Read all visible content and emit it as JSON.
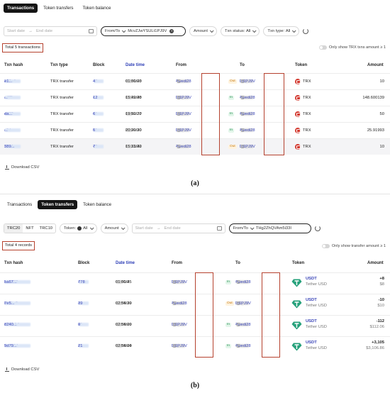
{
  "panel_a": {
    "tabs": [
      {
        "label": "Transactions",
        "active": true
      },
      {
        "label": "Token transfers",
        "active": false
      },
      {
        "label": "Token balance",
        "active": false
      }
    ],
    "filters": {
      "start_date_placeholder": "Start date",
      "end_date_placeholder": "End date",
      "from_to_label": "From/To",
      "from_to_value": "McvZJwYSULt1PJ9V",
      "amount_label": "Amount",
      "status_label": "Txn status:",
      "status_value": "All",
      "type_label": "Txn type:",
      "type_value": "All"
    },
    "total_text": "Total 5 transactions",
    "toggle_text": "Only show TRX txns amount ≥ 1",
    "columns": [
      "Txn hash",
      "Txn type",
      "Block",
      "Date time",
      "From",
      "",
      "To",
      "Token",
      "Amount"
    ],
    "rows": [
      {
        "hash_start": "2d3a4",
        "hash_end": "e1...",
        "type": "TRX transfer",
        "block_start": "43",
        "block_end": "4",
        "date_start": "08/30/20",
        "time": "01:01:03",
        "from_start": "TRz",
        "from_end": "4wedi28",
        "dir": "Out",
        "to_start": "THg",
        "to_end": "Lt1PJ9V",
        "token": "TRX",
        "amount": "10"
      },
      {
        "hash_start": "e47f",
        "hash_end": "...",
        "type": "TRX transfer",
        "block_start": "4",
        "block_end": "12",
        "date_start": "08/22/20",
        "time": "15:49:48",
        "from_start": "THg",
        "from_end": "Lt1PJ9V",
        "dir": "In",
        "to_start": "TRz",
        "to_end": "4wedi28",
        "token": "TRX",
        "amount": "148.600139"
      },
      {
        "hash_start": "e038",
        "hash_end": "da...",
        "type": "TRX transfer",
        "block_start": "41",
        "block_end": "6",
        "date_start": "06/22/20",
        "time": "19:50:27",
        "from_start": "THg",
        "from_end": "Lt1PJ9V",
        "dir": "In",
        "to_start": "TRz",
        "to_end": "4wedi28",
        "token": "TRX",
        "amount": "50"
      },
      {
        "hash_start": "c6d",
        "hash_end": "...",
        "type": "TRX transfer",
        "block_start": "41",
        "block_end": "5",
        "date_start": "06/09/20",
        "time": "20:20:30",
        "from_start": "THg",
        "from_end": "Lt1PJ9V",
        "dir": "In",
        "to_start": "TRz",
        "to_end": "4wedi28",
        "token": "TRX",
        "amount": "25.91993"
      },
      {
        "hash_start": "90c4",
        "hash_end": "389...",
        "type": "TRX transfer",
        "block_start": "40",
        "block_end": "7",
        "date_start": "05/23/20",
        "time": "15:31:42",
        "from_start": "TR",
        "from_end": "4wedi28",
        "dir": "Out",
        "to_start": "THg",
        "to_end": "Lt1PJ9V",
        "token": "TRX",
        "amount": "10"
      }
    ],
    "download_label": "Download CSV",
    "caption": "(a)"
  },
  "panel_b": {
    "tabs": [
      {
        "label": "Transactions",
        "active": false
      },
      {
        "label": "Token transfers",
        "active": true
      },
      {
        "label": "Token balance",
        "active": false
      }
    ],
    "filters": {
      "std_tabs": [
        "TRC20",
        "NFT",
        "TRC10"
      ],
      "token_label": "Token:",
      "token_value": "All",
      "amount_label": "Amount",
      "start_date_placeholder": "Start date",
      "end_date_placeholder": "End date",
      "from_to_label": "From/To",
      "from_to_value": "THg2ZhQVAm5i33I"
    },
    "total_text": "Total 4 records",
    "toggle_text": "Only show transfer amount ≥ 1",
    "columns": [
      "Txn hash",
      "Block",
      "Date time",
      "From",
      "",
      "To",
      "Token",
      "Amount"
    ],
    "rows": [
      {
        "hash_start": "138238",
        "hash_end": "ba67...",
        "block_start": "4",
        "block_end": "778",
        "date_start": "08/30/2",
        "time": "01:01:45",
        "from_start": "THg",
        "from_end": "Lt1PJ9V",
        "dir": "In",
        "to_start": "TRz",
        "to_end": "4wedi28",
        "token": "USDT",
        "token_sub": "Tether USD",
        "amount": "+8",
        "amount_usd": "$8"
      },
      {
        "hash_start": "b82bc3",
        "hash_end": "7e5...",
        "block_start": "41",
        "block_end": "39",
        "date_start": "06/04/20",
        "time": "02:58:39",
        "from_start": "TR",
        "from_end": "4wedi28",
        "dir": "Out",
        "to_start": "THg",
        "to_end": "Lt1PJ9V",
        "token": "USDT",
        "token_sub": "Tether USD",
        "amount": "-10",
        "amount_usd": "$10"
      },
      {
        "hash_start": "c327dbf",
        "hash_end": "8240...",
        "block_start": "41",
        "block_end": "9",
        "date_start": "06/04/20",
        "time": "02:58:09",
        "from_start": "THg",
        "from_end": "Lt1PJ9V",
        "dir": "In",
        "to_start": "TR",
        "to_end": "4wedi28",
        "token": "USDT",
        "token_sub": "Tether USD",
        "amount": "-112",
        "amount_usd": "$112.06"
      },
      {
        "hash_start": "5da154",
        "hash_end": "9d79...",
        "block_start": "41",
        "block_end": "21",
        "date_start": "06/04/20",
        "time": "02:58:04",
        "from_start": "THg",
        "from_end": "Lt1PJ9V",
        "dir": "In",
        "to_start": "TR",
        "to_end": "4wedi28",
        "token": "USDT",
        "token_sub": "Tether USD",
        "amount": "+3,105",
        "amount_usd": "$3,106.86"
      }
    ],
    "download_label": "Download CSV",
    "caption": "(b)"
  },
  "colors": {
    "highlight": "#b5412e",
    "link": "#3a45b8",
    "trx_red": "#d2342a",
    "usdt_green": "#26a17b"
  },
  "icons": [
    "calendar-icon",
    "clear-icon",
    "refresh-icon",
    "copy-icon",
    "trx-token-icon",
    "usdt-token-icon",
    "download-icon"
  ]
}
